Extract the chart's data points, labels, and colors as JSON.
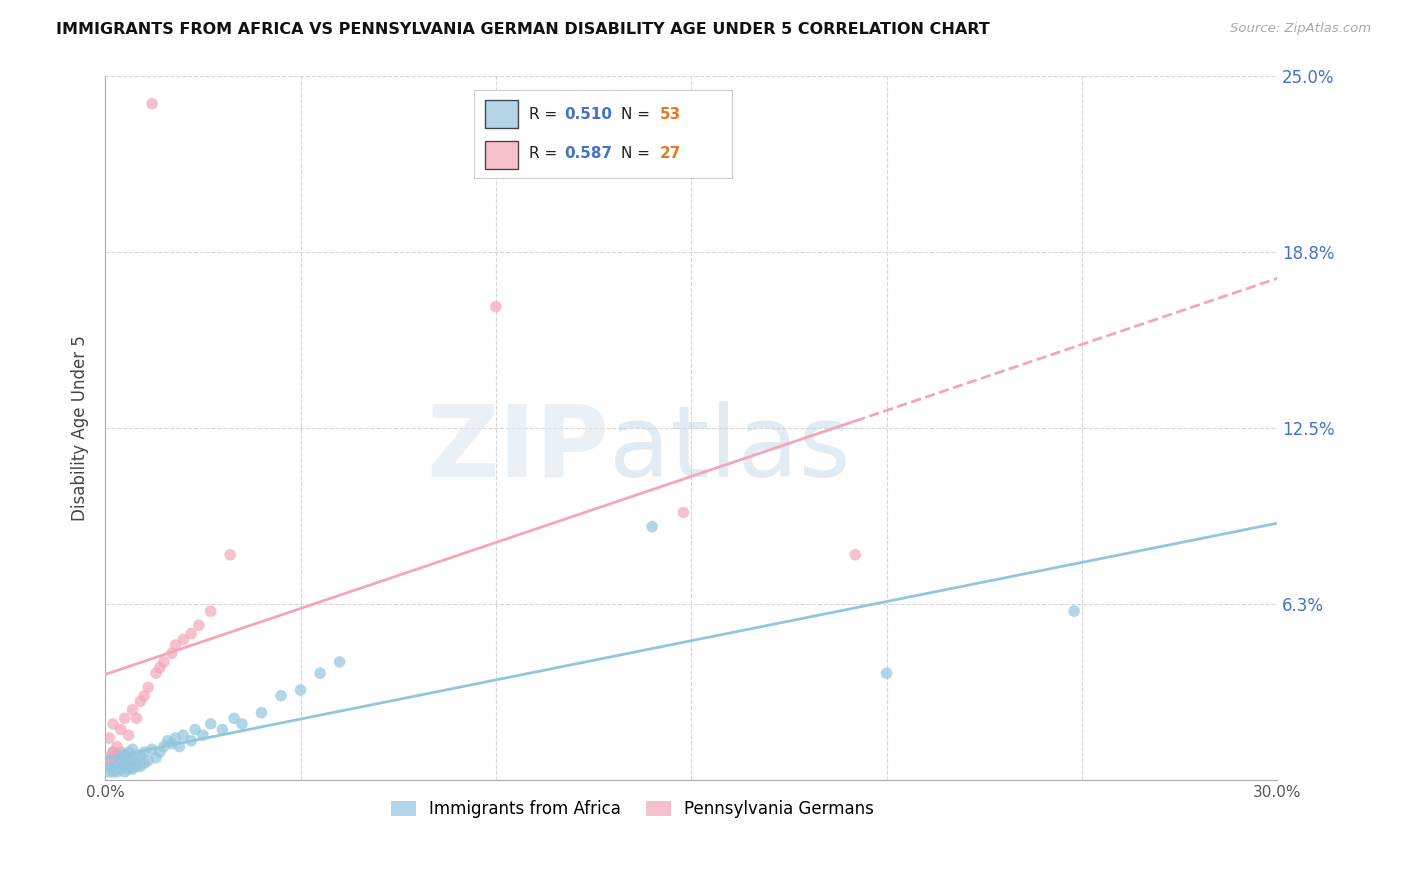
{
  "title": "IMMIGRANTS FROM AFRICA VS PENNSYLVANIA GERMAN DISABILITY AGE UNDER 5 CORRELATION CHART",
  "source": "Source: ZipAtlas.com",
  "ylabel": "Disability Age Under 5",
  "xmin": 0.0,
  "xmax": 0.3,
  "ymin": 0.0,
  "ymax": 0.25,
  "blue_color": "#92c5de",
  "pink_color": "#f4a6b8",
  "blue_r": 0.51,
  "blue_n": 53,
  "pink_r": 0.587,
  "pink_n": 27,
  "legend_label_blue": "Immigrants from Africa",
  "legend_label_pink": "Pennsylvania Germans",
  "blue_scatter_x": [
    0.001,
    0.001,
    0.001,
    0.002,
    0.002,
    0.002,
    0.002,
    0.003,
    0.003,
    0.003,
    0.004,
    0.004,
    0.004,
    0.005,
    0.005,
    0.005,
    0.006,
    0.006,
    0.006,
    0.007,
    0.007,
    0.007,
    0.008,
    0.008,
    0.009,
    0.009,
    0.01,
    0.01,
    0.011,
    0.012,
    0.013,
    0.014,
    0.015,
    0.016,
    0.017,
    0.018,
    0.019,
    0.02,
    0.022,
    0.023,
    0.025,
    0.027,
    0.03,
    0.033,
    0.035,
    0.04,
    0.045,
    0.05,
    0.055,
    0.06,
    0.14,
    0.2,
    0.248
  ],
  "blue_scatter_y": [
    0.003,
    0.005,
    0.007,
    0.003,
    0.005,
    0.008,
    0.01,
    0.003,
    0.006,
    0.009,
    0.004,
    0.007,
    0.01,
    0.003,
    0.006,
    0.009,
    0.004,
    0.007,
    0.01,
    0.004,
    0.007,
    0.011,
    0.005,
    0.008,
    0.005,
    0.009,
    0.006,
    0.01,
    0.007,
    0.011,
    0.008,
    0.01,
    0.012,
    0.014,
    0.013,
    0.015,
    0.012,
    0.016,
    0.014,
    0.018,
    0.016,
    0.02,
    0.018,
    0.022,
    0.02,
    0.024,
    0.03,
    0.032,
    0.038,
    0.042,
    0.09,
    0.038,
    0.06
  ],
  "pink_scatter_x": [
    0.001,
    0.001,
    0.002,
    0.002,
    0.003,
    0.004,
    0.005,
    0.006,
    0.007,
    0.008,
    0.009,
    0.01,
    0.011,
    0.013,
    0.014,
    0.015,
    0.017,
    0.018,
    0.02,
    0.022,
    0.024,
    0.027,
    0.032,
    0.1,
    0.148,
    0.192,
    0.012
  ],
  "pink_scatter_y": [
    0.008,
    0.015,
    0.01,
    0.02,
    0.012,
    0.018,
    0.022,
    0.016,
    0.025,
    0.022,
    0.028,
    0.03,
    0.033,
    0.038,
    0.04,
    0.042,
    0.045,
    0.048,
    0.05,
    0.052,
    0.055,
    0.06,
    0.08,
    0.168,
    0.095,
    0.08,
    0.24
  ],
  "pink_line_solid_end_x": 0.192,
  "r_color": "#4472c4",
  "n_color": "#e87722"
}
